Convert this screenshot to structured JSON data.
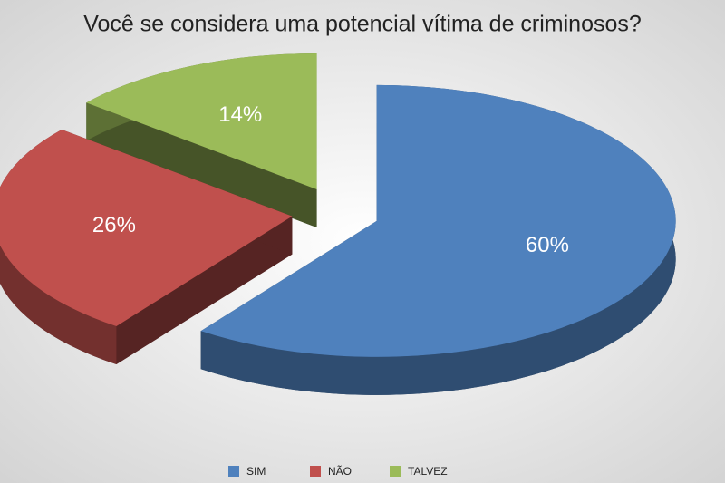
{
  "chart_data": {
    "type": "pie",
    "title": "Você se considera uma potencial vítima de criminosos?",
    "categories": [
      "SIM",
      "NÃO",
      "TALVEZ"
    ],
    "values": [
      60,
      26,
      14
    ],
    "value_labels": [
      "60%",
      "26%",
      "14%"
    ],
    "colors": [
      "#4f81bd",
      "#c0504d",
      "#9bbb59"
    ],
    "legend": "bottom"
  }
}
